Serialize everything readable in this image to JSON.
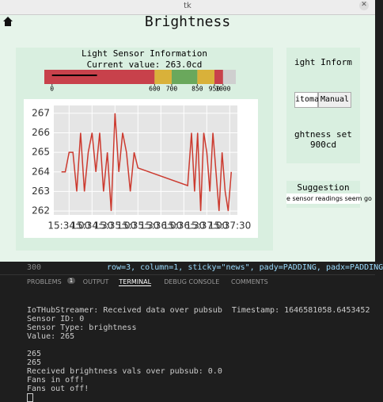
{
  "window": {
    "title": "tk"
  },
  "header": {
    "title": "Brightness"
  },
  "sensor_panel": {
    "title": "Light Sensor Information",
    "current": "Current value: 263.0cd",
    "gauge": {
      "value": 263.0,
      "lim": [
        -45,
        1075
      ],
      "ticks": [
        0,
        600,
        700,
        850,
        950,
        1000
      ],
      "bands": [
        {
          "from": -45,
          "to": 600,
          "color": "#c8414b"
        },
        {
          "from": 600,
          "to": 700,
          "color": "#d9b13a"
        },
        {
          "from": 700,
          "to": 850,
          "color": "#6aa85c"
        },
        {
          "from": 850,
          "to": 950,
          "color": "#d9b13a"
        },
        {
          "from": 950,
          "to": 1000,
          "color": "#c8414b"
        }
      ]
    }
  },
  "chart": {
    "type": "line",
    "color": "#cc3a2f",
    "x": [
      "15:33:50",
      "15:33:55",
      "15:34:00",
      "15:34:05",
      "15:34:10",
      "15:34:15",
      "15:34:20",
      "15:34:25",
      "15:34:30",
      "15:34:35",
      "15:34:40",
      "15:34:45",
      "15:34:50",
      "15:34:55",
      "15:35:00",
      "15:35:05",
      "15:35:10",
      "15:35:15",
      "15:35:20",
      "15:35:25",
      "15:35:30",
      "15:36:35",
      "15:36:40",
      "15:36:44",
      "15:36:48",
      "15:36:52",
      "15:36:56",
      "15:37:00",
      "15:37:04",
      "15:37:08",
      "15:37:12",
      "15:37:16",
      "15:37:20",
      "15:37:24",
      "15:37:28",
      "15:37:32"
    ],
    "values": [
      264,
      264,
      265,
      265,
      263,
      266,
      263,
      265,
      266,
      264,
      266,
      263,
      265,
      262,
      267,
      264,
      266,
      265,
      263,
      265,
      264.2,
      263.3,
      266,
      263,
      266,
      262,
      266,
      265,
      263,
      266,
      264,
      262,
      265,
      263,
      262,
      264
    ],
    "xlim": [
      "15:33:40",
      "15:37:40"
    ],
    "ylim": [
      261.8,
      267.4
    ],
    "yticks": [
      262,
      263,
      264,
      265,
      266,
      267
    ],
    "xticks": [
      "15:34:00",
      "15:34:30",
      "15:35:00",
      "15:35:30",
      "15:36:00",
      "15:36:30",
      "15:37:00",
      "15:37:30"
    ]
  },
  "side_panel": {
    "title": "ight Inform",
    "buttons": [
      "itoma",
      "Manual"
    ],
    "set_label": "ghtness set",
    "set_value": "900cd"
  },
  "suggestion": {
    "title": "Suggestion",
    "text": "e sensor readings seem go"
  },
  "editor": {
    "line_number": "300",
    "code": "row=3, column=1, sticky=\"news\", pady=PADDING, padx=PADDING"
  },
  "tabs": [
    {
      "label": "PROBLEMS",
      "badge": "1"
    },
    {
      "label": "OUTPUT"
    },
    {
      "label": "TERMINAL"
    },
    {
      "label": "DEBUG CONSOLE"
    },
    {
      "label": "COMMENTS"
    }
  ],
  "terminal": {
    "lines": [
      "IoTHubStreamer: Received data over pubsub  Timestamp: 1646581058.6453452",
      "Sensor ID: 0",
      "Sensor Type: brightness",
      "Value: 265",
      "",
      "265",
      "265",
      "Received brightness vals over pubsub: 0.0",
      "Fans in off!",
      "Fans out off!"
    ]
  }
}
